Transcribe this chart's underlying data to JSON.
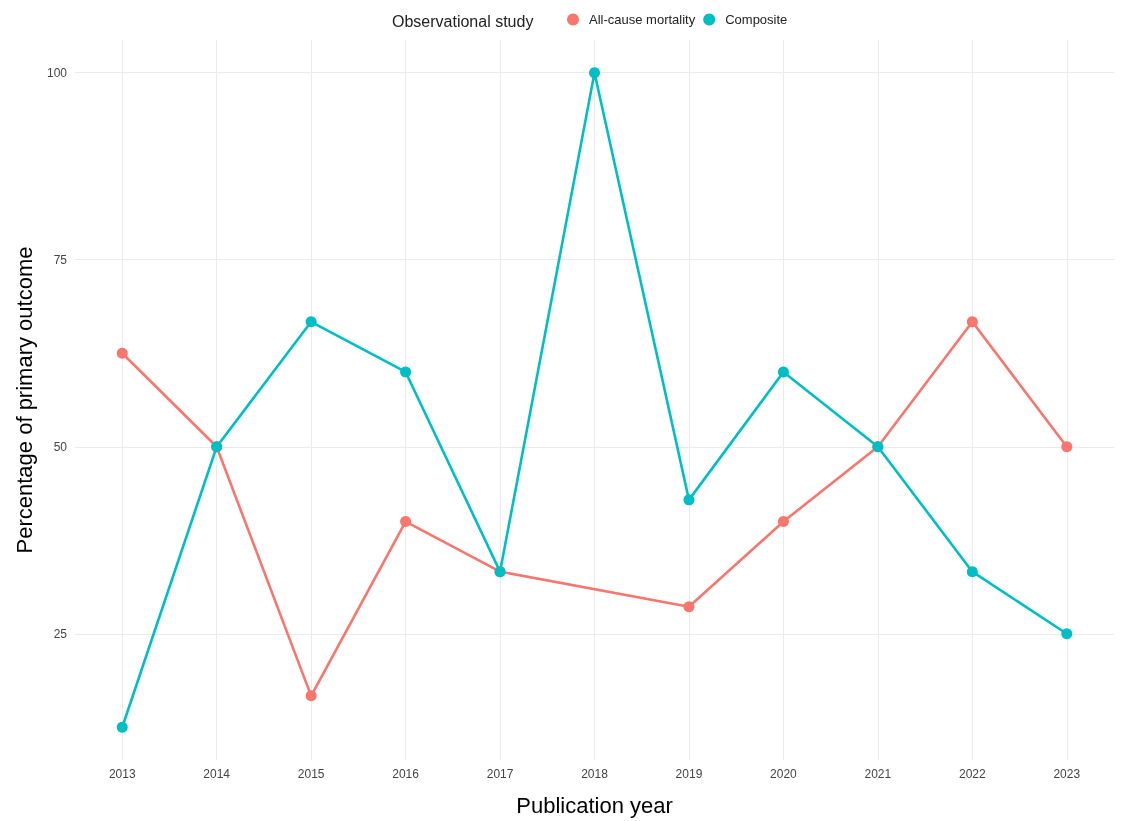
{
  "chart_data": {
    "type": "line",
    "xlabel": "Publication year",
    "ylabel": "Percentage of primary outcome",
    "legend_title": "Observational study",
    "series": [
      {
        "name": "All-cause mortality",
        "color": "#f8766d",
        "x": [
          2013,
          2014,
          2015,
          2016,
          2017,
          2019,
          2020,
          2021,
          2022,
          2023
        ],
        "values": [
          62.5,
          50,
          16.7,
          40,
          33.3,
          28.6,
          40,
          50,
          66.7,
          50
        ]
      },
      {
        "name": "Composite",
        "color": "#00bfc4",
        "x": [
          2013,
          2014,
          2015,
          2016,
          2017,
          2018,
          2019,
          2020,
          2021,
          2022,
          2023
        ],
        "values": [
          12.5,
          50,
          66.7,
          60,
          33.3,
          100,
          42.9,
          60,
          50,
          33.3,
          25
        ]
      }
    ],
    "xlim": [
      2012.5,
      2023.5
    ],
    "xticks": [
      2013,
      2014,
      2015,
      2016,
      2017,
      2018,
      2019,
      2020,
      2021,
      2022,
      2023
    ],
    "ylim": [
      8.125,
      104.375
    ],
    "yticks": [
      25,
      50,
      75,
      100
    ],
    "grid": true,
    "legend": "top",
    "marker": "circle",
    "line_style": "solid"
  }
}
